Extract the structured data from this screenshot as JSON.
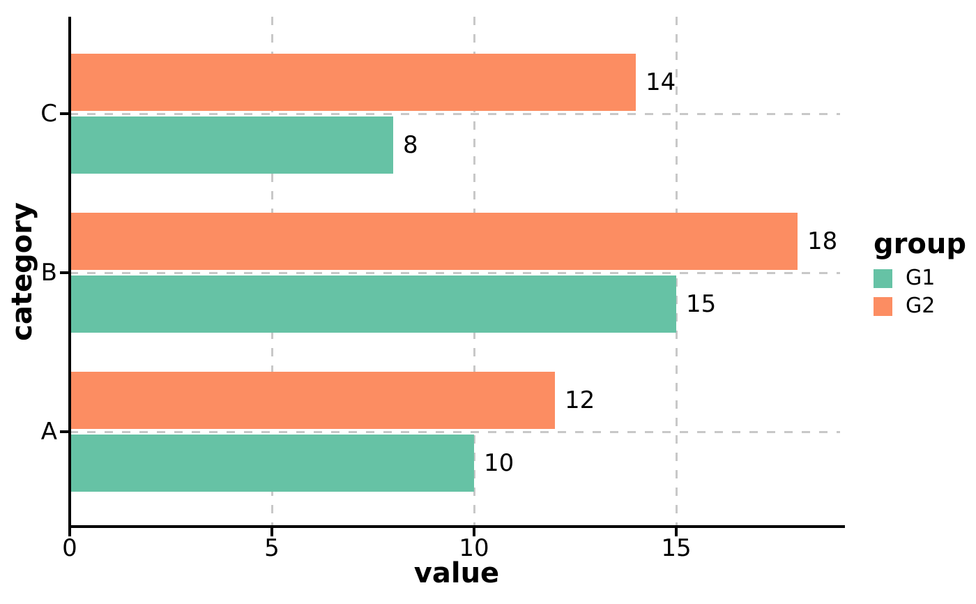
{
  "chart_data": {
    "type": "bar",
    "orientation": "horizontal",
    "title": "",
    "xlabel": "value",
    "ylabel": "category",
    "categories": [
      "A",
      "B",
      "C"
    ],
    "series": [
      {
        "name": "G1",
        "color": "#66C2A5",
        "values": [
          10,
          15,
          8
        ]
      },
      {
        "name": "G2",
        "color": "#FC8D62",
        "values": [
          12,
          18,
          14
        ]
      }
    ],
    "bar_value_labels": {
      "G1": [
        "10",
        "15",
        "8"
      ],
      "G2": [
        "12",
        "18",
        "14"
      ]
    },
    "x_ticks": [
      0,
      5,
      10,
      15
    ],
    "xlim": [
      0,
      19
    ],
    "grid": {
      "style": "dashed",
      "color": "#c8c8c8",
      "vertical_at": [
        5,
        10,
        15
      ],
      "horizontal_at": [
        "A",
        "B",
        "C"
      ]
    },
    "axis_color": "#000000",
    "legend": {
      "title": "group",
      "entries": [
        "G1",
        "G2"
      ],
      "position": "right"
    }
  }
}
